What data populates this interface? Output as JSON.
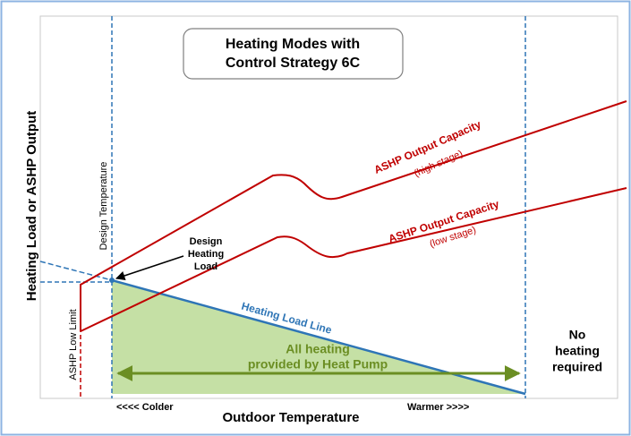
{
  "title": [
    "Heating Modes with",
    "Control Strategy 6C"
  ],
  "y_axis_label": "Heating Load or ASHP Output",
  "x_axis_label": "Outdoor Temperature",
  "x_left_label": "<<<< Colder",
  "x_right_label": "Warmer >>>>",
  "design_temperature": "Design Temperature",
  "low_limit": "ASHP Low Limit",
  "design_heating_load": [
    "Design",
    "Heating",
    "Load"
  ],
  "heating_load_line": "Heating Load Line",
  "high_stage": [
    "ASHP Output Capacity",
    "(high stage)"
  ],
  "low_stage": [
    "ASHP Output Capacity",
    "(low stage)"
  ],
  "heat_pump_zone": [
    "All heating",
    "provided by Heat Pump"
  ],
  "no_heating": [
    "No",
    "heating",
    "required"
  ]
}
